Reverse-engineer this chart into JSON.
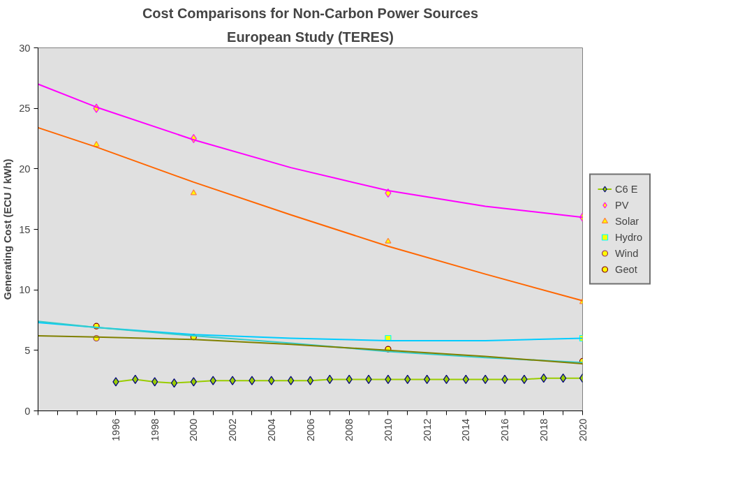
{
  "chart_data": {
    "type": "line",
    "title": "Cost Comparisons for Non-Carbon Power Sources",
    "subtitle": "European Study (TERES)",
    "ylabel": "Generating Cost (ECU / kWh)",
    "xlim": [
      1992,
      2020
    ],
    "ylim": [
      0,
      30
    ],
    "yticks": [
      0,
      5,
      10,
      15,
      20,
      25,
      30
    ],
    "xticks": [
      {
        "value": 1992,
        "label": null
      },
      {
        "value": 1993,
        "label": null
      },
      {
        "value": 1994,
        "label": null
      },
      {
        "value": 1995,
        "label": null
      },
      1996,
      {
        "value": 1997,
        "label": null
      },
      1998,
      {
        "value": 1999,
        "label": null
      },
      2000,
      {
        "value": 2001,
        "label": null
      },
      2002,
      {
        "value": 2003,
        "label": null
      },
      2004,
      {
        "value": 2005,
        "label": null
      },
      2006,
      {
        "value": 2007,
        "label": null
      },
      2008,
      {
        "value": 2009,
        "label": null
      },
      2010,
      {
        "value": 2011,
        "label": null
      },
      2012,
      {
        "value": 2013,
        "label": null
      },
      2014,
      {
        "value": 2015,
        "label": null
      },
      2016,
      {
        "value": 2017,
        "label": null
      },
      2018,
      {
        "value": 2019,
        "label": null
      },
      2020
    ],
    "grid": false,
    "legend": "right",
    "series": [
      {
        "name": "C6 E",
        "color": "#99cc00",
        "marker": "diamond",
        "x": [
          1996,
          1997,
          1998,
          1999,
          2000,
          2001,
          2002,
          2003,
          2004,
          2005,
          2006,
          2007,
          2008,
          2009,
          2010,
          2011,
          2012,
          2013,
          2014,
          2015,
          2016,
          2017,
          2018,
          2019,
          2020
        ],
        "values": [
          2.4,
          2.6,
          2.4,
          2.3,
          2.4,
          2.5,
          2.5,
          2.5,
          2.5,
          2.5,
          2.5,
          2.6,
          2.6,
          2.6,
          2.6,
          2.6,
          2.6,
          2.6,
          2.6,
          2.6,
          2.6,
          2.6,
          2.7,
          2.7,
          2.7
        ]
      },
      {
        "name": "PV",
        "type": "scatter",
        "color": "#ff00ff",
        "marker": "diamond",
        "x": [
          1995,
          2000,
          2010,
          2020
        ],
        "values": [
          25,
          22.5,
          18,
          16
        ]
      },
      {
        "name": "Solar",
        "type": "scatter",
        "color": "#ff8040",
        "marker": "triangle",
        "x": [
          1995,
          2000,
          2010,
          2020
        ],
        "values": [
          22,
          18,
          14,
          9
        ]
      },
      {
        "name": "Hydro",
        "type": "scatter",
        "color": "#00ffff",
        "marker": "square",
        "x": [
          2010,
          2020
        ],
        "values": [
          6,
          6
        ]
      },
      {
        "name": "Wind",
        "type": "scatter",
        "color": "#993366",
        "marker": "circle",
        "x": [
          1995
        ],
        "values": [
          6
        ]
      },
      {
        "name": "Geot",
        "type": "scatter",
        "color": "#800000",
        "marker": "circle",
        "x": [
          1995,
          2000,
          2010,
          2020
        ],
        "values": [
          7,
          6.1,
          5.1,
          4.1
        ]
      },
      {
        "type": "line",
        "color": "#ff00ff",
        "marker": "none",
        "x": [
          1992,
          1995,
          2000,
          2005,
          2010,
          2015,
          2020
        ],
        "values": [
          27,
          25.1,
          22.4,
          20.1,
          18.2,
          16.9,
          16
        ]
      },
      {
        "type": "line",
        "color": "#ff6600",
        "marker": "none",
        "x": [
          1992,
          1995,
          2000,
          2005,
          2010,
          2015,
          2020
        ],
        "values": [
          23.4,
          21.8,
          18.9,
          16.2,
          13.6,
          11.3,
          9.1
        ]
      },
      {
        "type": "line",
        "color": "#00ccff",
        "marker": "none",
        "x": [
          1992,
          1995,
          2000,
          2005,
          2010,
          2015,
          2020
        ],
        "values": [
          7.3,
          6.9,
          6.3,
          6,
          5.8,
          5.8,
          6
        ]
      },
      {
        "type": "line",
        "color": "#33cccc",
        "marker": "none",
        "x": [
          1992,
          1995,
          2000,
          2005,
          2010,
          2015,
          2020
        ],
        "values": [
          7.4,
          6.9,
          6.2,
          5.6,
          4.9,
          4.4,
          4
        ]
      },
      {
        "type": "line",
        "color": "#808000",
        "marker": "none",
        "x": [
          1992,
          1995,
          2000,
          2005,
          2010,
          2015,
          2020
        ],
        "values": [
          6.2,
          6.1,
          5.9,
          5.5,
          5,
          4.5,
          3.9
        ]
      }
    ]
  }
}
